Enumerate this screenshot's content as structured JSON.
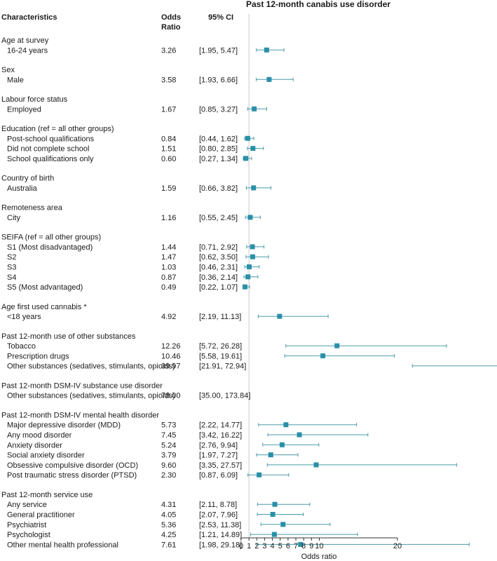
{
  "chart_data": {
    "type": "forest",
    "title": "Past 12-month canabis use disorder",
    "columns": {
      "characteristics": "Characteristics",
      "or_line1": "Odds",
      "or_line2": "Ratio",
      "ci": "95% CI"
    },
    "xlabel": "Odds ratio",
    "xlim": [
      0,
      20
    ],
    "xticks": [
      0,
      1,
      2,
      3,
      4,
      5,
      6,
      7,
      8,
      9,
      10,
      20
    ],
    "reference_line": 1,
    "colors": {
      "marker": "#2a8fa8",
      "ci_line": "#4a9aaa",
      "reference": "#c8c8c8",
      "axis": "#333333",
      "text": "#1a1a1a"
    },
    "groups": [
      {
        "title": "Age at survey",
        "rows": [
          {
            "label": "16-24 years",
            "or_text": "3.26",
            "ci_text": "[1.95, 5.47]",
            "or": 3.26,
            "lo": 1.95,
            "hi": 5.47
          }
        ]
      },
      {
        "title": "Sex",
        "rows": [
          {
            "label": "Male",
            "or_text": "3.58",
            "ci_text": "[1.93, 6.66]",
            "or": 3.58,
            "lo": 1.93,
            "hi": 6.66
          }
        ]
      },
      {
        "title": "Labour force status",
        "rows": [
          {
            "label": "Employed",
            "or_text": "1.67",
            "ci_text": "[0.85, 3.27]",
            "or": 1.67,
            "lo": 0.85,
            "hi": 3.27
          }
        ]
      },
      {
        "title": "Education (ref = all other groups)",
        "rows": [
          {
            "label": "Post-school qualifications",
            "or_text": "0.84",
            "ci_text": "[0.44, 1.62]",
            "or": 0.84,
            "lo": 0.44,
            "hi": 1.62
          },
          {
            "label": "Did not complete school",
            "or_text": "1.51",
            "ci_text": "[0.80, 2.85]",
            "or": 1.51,
            "lo": 0.8,
            "hi": 2.85
          },
          {
            "label": "School qualifications only",
            "or_text": "0.60",
            "ci_text": "[0.27, 1.34]",
            "or": 0.6,
            "lo": 0.27,
            "hi": 1.34
          }
        ]
      },
      {
        "title": "Country of birth",
        "rows": [
          {
            "label": "Australia",
            "or_text": "1.59",
            "ci_text": "[0.66, 3.82]",
            "or": 1.59,
            "lo": 0.66,
            "hi": 3.82
          }
        ]
      },
      {
        "title": "Remoteness area",
        "rows": [
          {
            "label": "City",
            "or_text": "1.16",
            "ci_text": "[0.55, 2.45]",
            "or": 1.16,
            "lo": 0.55,
            "hi": 2.45
          }
        ]
      },
      {
        "title": "SEIFA (ref = all other groups)",
        "rows": [
          {
            "label": "S1 (Most disadvantaged)",
            "or_text": "1.44",
            "ci_text": "[0.71, 2.92]",
            "or": 1.44,
            "lo": 0.71,
            "hi": 2.92
          },
          {
            "label": "S2",
            "or_text": "1.47",
            "ci_text": "[0.62, 3.50]",
            "or": 1.47,
            "lo": 0.62,
            "hi": 3.5
          },
          {
            "label": "S3",
            "or_text": "1.03",
            "ci_text": "[0.46, 2.31]",
            "or": 1.03,
            "lo": 0.46,
            "hi": 2.31
          },
          {
            "label": "S4",
            "or_text": "0.87",
            "ci_text": "[0.36, 2.14]",
            "or": 0.87,
            "lo": 0.36,
            "hi": 2.14
          },
          {
            "label": "S5 (Most advantaged)",
            "or_text": "0.49",
            "ci_text": "[0.22, 1.07]",
            "or": 0.49,
            "lo": 0.22,
            "hi": 1.07
          }
        ]
      },
      {
        "title": "Age first used cannabis *",
        "rows": [
          {
            "label": "<18 years",
            "or_text": "4.92",
            "ci_text": "[2.19, 11.13]",
            "or": 4.92,
            "lo": 2.19,
            "hi": 11.13
          }
        ]
      },
      {
        "title": "Past 12-month use of other substances",
        "rows": [
          {
            "label": "Tobacco",
            "or_text": "12.26",
            "ci_text": "[5.72, 26.28]",
            "or": 12.26,
            "lo": 5.72,
            "hi": 26.28
          },
          {
            "label": "Prescription drugs",
            "or_text": "10.46",
            "ci_text": "[5.58, 19.61]",
            "or": 10.46,
            "lo": 5.58,
            "hi": 19.61
          },
          {
            "label": "Other substances (sedatives, stimulants, opioids)",
            "or_text": "39.97",
            "ci_text": "[21.91, 72.94]",
            "or": 39.97,
            "lo": 21.91,
            "hi": 72.94
          }
        ]
      },
      {
        "title": "Past 12-month DSM-IV substance use disorder",
        "rows": [
          {
            "label": "Other substances (sedatives, stimulants, opioids)",
            "or_text": "78.00",
            "ci_text": "[35.00, 173.84]",
            "or": 78.0,
            "lo": 35.0,
            "hi": 173.84
          }
        ]
      },
      {
        "title": "Past 12-month DSM-IV mental health disorder",
        "rows": [
          {
            "label": "Major depressive disorder (MDD)",
            "or_text": "5.73",
            "ci_text": "[2.22, 14.77]",
            "or": 5.73,
            "lo": 2.22,
            "hi": 14.77
          },
          {
            "label": "Any mood disorder",
            "or_text": "7.45",
            "ci_text": "[3.42, 16.22]",
            "or": 7.45,
            "lo": 3.42,
            "hi": 16.22
          },
          {
            "label": "Anxiety disorder",
            "or_text": "5.24",
            "ci_text": "[2.76, 9.94]",
            "or": 5.24,
            "lo": 2.76,
            "hi": 9.94
          },
          {
            "label": "Social anxiety disorder",
            "or_text": "3.79",
            "ci_text": "[1.97, 7.27]",
            "or": 3.79,
            "lo": 1.97,
            "hi": 7.27
          },
          {
            "label": "Obsessive compulsive disorder (OCD)",
            "or_text": "9.60",
            "ci_text": "[3.35, 27.57]",
            "or": 9.6,
            "lo": 3.35,
            "hi": 27.57
          },
          {
            "label": "Post traumatic stress disorder (PTSD)",
            "or_text": "2.30",
            "ci_text": "[0.87, 6.09]",
            "or": 2.3,
            "lo": 0.87,
            "hi": 6.09
          }
        ]
      },
      {
        "title": "Past 12-month service use",
        "rows": [
          {
            "label": "Any service",
            "or_text": "4.31",
            "ci_text": "[2.11, 8.78]",
            "or": 4.31,
            "lo": 2.11,
            "hi": 8.78
          },
          {
            "label": "General practitioner",
            "or_text": "4.05",
            "ci_text": "[2.07, 7.96]",
            "or": 4.05,
            "lo": 2.07,
            "hi": 7.96
          },
          {
            "label": "Psychiatrist",
            "or_text": "5.36",
            "ci_text": "[2.53, 11.38]",
            "or": 5.36,
            "lo": 2.53,
            "hi": 11.38
          },
          {
            "label": "Psychologist",
            "or_text": "4.25",
            "ci_text": "[1.21, 14.89]",
            "or": 4.25,
            "lo": 1.21,
            "hi": 14.89
          },
          {
            "label": "Other mental health professional",
            "or_text": "7.61",
            "ci_text": "[1.98, 29.18]",
            "or": 7.61,
            "lo": 1.98,
            "hi": 29.18
          }
        ]
      }
    ]
  }
}
